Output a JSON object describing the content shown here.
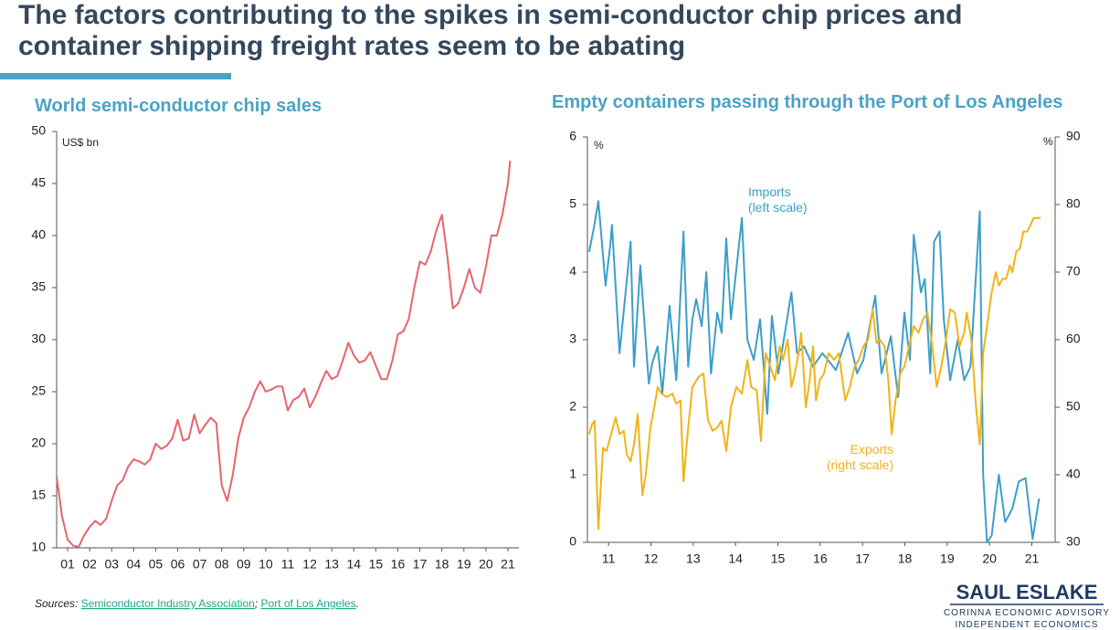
{
  "header": {
    "title_lines": [
      "The factors contributing to the spikes in semi-conductor chip prices and",
      "container shipping freight rates seem to be abating"
    ]
  },
  "chart_data": [
    {
      "type": "line",
      "title": "World semi-conductor chip sales",
      "y_unit": "US$ bn",
      "color": "#e8636c",
      "x": [
        1.0,
        1.25,
        1.5,
        1.75,
        2.0,
        2.25,
        2.5,
        2.75,
        3.0,
        3.25,
        3.5,
        3.75,
        4.0,
        4.25,
        4.5,
        4.75,
        5.0,
        5.25,
        5.5,
        5.75,
        6.0,
        6.25,
        6.5,
        6.75,
        7.0,
        7.25,
        7.5,
        7.75,
        8.0,
        8.25,
        8.5,
        8.75,
        9.0,
        9.25,
        9.5,
        9.75,
        10.0,
        10.25,
        10.5,
        10.75,
        11.0,
        11.25,
        11.5,
        11.75,
        12.0,
        12.25,
        12.5,
        12.75,
        13.0,
        13.25,
        13.5,
        13.75,
        14.0,
        14.25,
        14.5,
        14.75,
        15.0,
        15.25,
        15.5,
        15.75,
        16.0,
        16.25,
        16.5,
        16.75,
        17.0,
        17.25,
        17.5,
        17.75,
        18.0,
        18.25,
        18.5,
        18.75,
        19.0,
        19.25,
        19.5,
        19.75,
        20.0,
        20.25,
        20.5,
        20.75,
        21.0,
        21.25,
        21.5,
        21.6
      ],
      "values": [
        16.8,
        13,
        10.8,
        10.2,
        10.1,
        11.2,
        12,
        12.6,
        12.2,
        12.8,
        14.5,
        16,
        16.5,
        17.8,
        18.5,
        18.3,
        18,
        18.5,
        20,
        19.5,
        19.8,
        20.5,
        22.3,
        20.3,
        20.5,
        22.8,
        21,
        21.8,
        22.5,
        22,
        16,
        14.5,
        17,
        20.5,
        22.5,
        23.5,
        25,
        26,
        25,
        25.2,
        25.5,
        25.5,
        23.2,
        24.2,
        24.5,
        25.3,
        23.5,
        24.5,
        25.8,
        27,
        26.2,
        26.5,
        28,
        29.7,
        28.5,
        27.8,
        28,
        28.8,
        27.5,
        26.2,
        26.2,
        28,
        30.5,
        30.8,
        32,
        35,
        37.5,
        37.2,
        38.5,
        40.5,
        42,
        38,
        33,
        33.5,
        35,
        36.8,
        35,
        34.5,
        37,
        40,
        40,
        42,
        45,
        47.2
      ],
      "xlim": [
        1,
        22
      ],
      "xticks": [
        {
          "value": 1.5,
          "label": "01"
        },
        {
          "value": 2.5,
          "label": "02"
        },
        {
          "value": 3.5,
          "label": "03"
        },
        {
          "value": 4.5,
          "label": "04"
        },
        {
          "value": 5.5,
          "label": "05"
        },
        {
          "value": 6.5,
          "label": "06"
        },
        {
          "value": 7.5,
          "label": "07"
        },
        {
          "value": 8.5,
          "label": "08"
        },
        {
          "value": 9.5,
          "label": "09"
        },
        {
          "value": 10.5,
          "label": "10"
        },
        {
          "value": 11.5,
          "label": "11"
        },
        {
          "value": 12.5,
          "label": "12"
        },
        {
          "value": 13.5,
          "label": "13"
        },
        {
          "value": 14.5,
          "label": "14"
        },
        {
          "value": 15.5,
          "label": "15"
        },
        {
          "value": 16.5,
          "label": "16"
        },
        {
          "value": 17.5,
          "label": "17"
        },
        {
          "value": 18.5,
          "label": "18"
        },
        {
          "value": 19.5,
          "label": "19"
        },
        {
          "value": 20.5,
          "label": "20"
        },
        {
          "value": 21.5,
          "label": "21"
        }
      ],
      "ylim": [
        10,
        50
      ],
      "yticks": [
        10,
        15,
        20,
        25,
        30,
        35,
        40,
        45,
        50
      ]
    },
    {
      "type": "line",
      "title": "Empty containers passing through the Port of Los Angeles",
      "y_unit": "%",
      "y2_unit": "%",
      "series": [
        {
          "name": "Imports",
          "scale_note": "(left scale)",
          "color": "#3c9fc8",
          "x": [
            11.04,
            11.15,
            11.26,
            11.43,
            11.54,
            11.58,
            11.76,
            12.02,
            12.1,
            12.25,
            12.45,
            12.53,
            12.66,
            12.77,
            12.94,
            13.1,
            13.27,
            13.38,
            13.48,
            13.57,
            13.7,
            13.81,
            13.92,
            14.07,
            14.17,
            14.28,
            14.39,
            14.65,
            14.78,
            14.93,
            15.08,
            15.25,
            15.36,
            15.51,
            15.82,
            15.95,
            16.12,
            16.33,
            16.55,
            16.87,
            17.16,
            17.37,
            17.52,
            17.8,
            17.95,
            18.17,
            18.34,
            18.49,
            18.62,
            18.71,
            18.88,
            18.97,
            19.1,
            19.19,
            19.32,
            19.42,
            19.57,
            19.75,
            19.9,
            20.05,
            20.27,
            20.35,
            20.44,
            20.55,
            20.72,
            20.87,
            21.04,
            21.19,
            21.35,
            21.52,
            21.67
          ],
          "values": [
            4.3,
            4.65,
            5.05,
            3.8,
            4.4,
            4.7,
            2.8,
            4.45,
            2.6,
            4.1,
            2.35,
            2.65,
            2.9,
            2.2,
            3.5,
            2.4,
            4.6,
            2.6,
            3.3,
            3.6,
            3.2,
            4.0,
            2.5,
            3.4,
            3.1,
            4.5,
            3.3,
            4.8,
            3.0,
            2.7,
            3.3,
            1.9,
            3.35,
            2.5,
            3.7,
            2.8,
            2.9,
            2.6,
            2.8,
            2.55,
            3.1,
            2.5,
            2.7,
            3.65,
            2.5,
            3.05,
            2.15,
            3.4,
            2.7,
            4.55,
            3.7,
            3.9,
            2.5,
            4.45,
            4.6,
            3.3,
            2.4,
            3.0,
            2.4,
            2.6,
            4.9,
            1.0,
            0.0,
            0.1,
            1.0,
            0.3,
            0.5,
            0.9,
            0.95,
            0.05,
            0.65
          ]
        },
        {
          "name": "Exports",
          "scale_note": "(right scale)",
          "color": "#f2b318",
          "axis": "y2",
          "x": [
            11.04,
            11.11,
            11.17,
            11.26,
            11.37,
            11.45,
            11.56,
            11.67,
            11.76,
            11.86,
            11.93,
            12.02,
            12.1,
            12.19,
            12.3,
            12.38,
            12.49,
            12.58,
            12.66,
            12.75,
            12.88,
            13.01,
            13.1,
            13.2,
            13.27,
            13.38,
            13.48,
            13.63,
            13.74,
            13.85,
            13.96,
            14.07,
            14.17,
            14.28,
            14.39,
            14.52,
            14.65,
            14.78,
            14.87,
            15.0,
            15.1,
            15.21,
            15.32,
            15.43,
            15.54,
            15.62,
            15.73,
            15.82,
            15.9,
            15.99,
            16.05,
            16.16,
            16.25,
            16.33,
            16.4,
            16.49,
            16.59,
            16.7,
            16.83,
            16.94,
            17.09,
            17.2,
            17.31,
            17.41,
            17.52,
            17.63,
            17.74,
            17.83,
            17.91,
            18.02,
            18.11,
            18.19,
            18.28,
            18.39,
            18.49,
            18.6,
            18.71,
            18.82,
            18.93,
            19.03,
            19.14,
            19.25,
            19.36,
            19.47,
            19.57,
            19.68,
            19.79,
            19.9,
            19.96,
            20.07,
            20.18,
            20.27,
            20.35,
            20.44,
            20.55,
            20.65,
            20.72,
            20.81,
            20.89,
            20.98,
            21.04,
            21.13,
            21.22,
            21.3,
            21.39,
            21.47,
            21.54,
            21.65,
            21.71
          ],
          "values": [
            46,
            47.5,
            48,
            32,
            44,
            43.5,
            46,
            48.5,
            46,
            46.5,
            43,
            42,
            44.5,
            49,
            37,
            40,
            47,
            50,
            53,
            52,
            51.5,
            52,
            50.5,
            51,
            39,
            47,
            53,
            54.5,
            55,
            48,
            46.5,
            47,
            48,
            43.5,
            50,
            53,
            52,
            57,
            53,
            52.5,
            45,
            58,
            56,
            54,
            59,
            57,
            60,
            53,
            55,
            58,
            61,
            50,
            54,
            59,
            51,
            54,
            55,
            58,
            57,
            58,
            51,
            53,
            56,
            57,
            59,
            60,
            64.5,
            59.5,
            60,
            59,
            54,
            46,
            51,
            55,
            56,
            59,
            62,
            61,
            63,
            64,
            59.5,
            53,
            56,
            60,
            64.5,
            64,
            59,
            61,
            64,
            60,
            50,
            44.5,
            58,
            62,
            67,
            70,
            68,
            69,
            69,
            71,
            70,
            73,
            73.5,
            76,
            76,
            77,
            78,
            78,
            78
          ]
        }
      ],
      "xlim": [
        11,
        22.05
      ],
      "xticks": [
        {
          "value": 11.5,
          "label": "11"
        },
        {
          "value": 12.5,
          "label": "12"
        },
        {
          "value": 13.5,
          "label": "13"
        },
        {
          "value": 14.5,
          "label": "14"
        },
        {
          "value": 15.5,
          "label": "15"
        },
        {
          "value": 16.5,
          "label": "16"
        },
        {
          "value": 17.5,
          "label": "17"
        },
        {
          "value": 18.5,
          "label": "18"
        },
        {
          "value": 19.5,
          "label": "19"
        },
        {
          "value": 20.5,
          "label": "20"
        },
        {
          "value": 21.5,
          "label": "21"
        }
      ],
      "ylim": [
        0,
        6
      ],
      "yticks": [
        0,
        1,
        2,
        3,
        4,
        5,
        6
      ],
      "y2lim": [
        30,
        90
      ],
      "y2ticks": [
        30,
        40,
        50,
        60,
        70,
        80,
        90
      ]
    }
  ],
  "footer": {
    "sources_label": "Sources:",
    "source_links": [
      "Semiconductor Industry Association",
      "Port of Los Angeles"
    ],
    "separator": ";",
    "end": "."
  },
  "logo": {
    "name": "SAUL ESLAKE",
    "line1": "CORINNA ECONOMIC ADVISORY",
    "line2": "INDEPENDENT ECONOMICS"
  }
}
